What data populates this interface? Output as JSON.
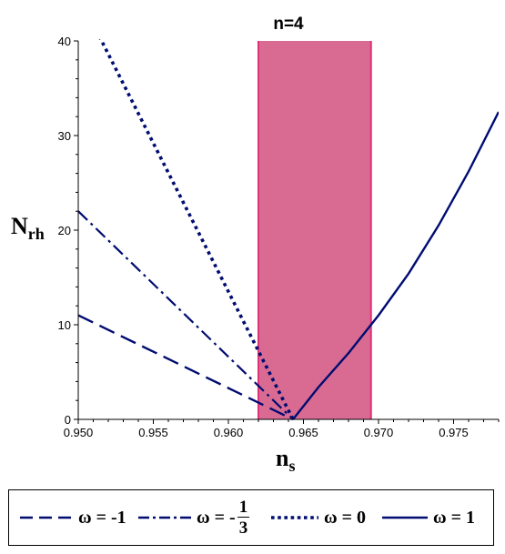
{
  "chart_data": {
    "type": "line",
    "title": "n=4",
    "xlabel": "n",
    "xlabel_sub": "s",
    "ylabel": "N",
    "ylabel_sub": "rh",
    "xlim": [
      0.95,
      0.978
    ],
    "ylim": [
      0,
      40
    ],
    "xticks": [
      "0.950",
      "0.955",
      "0.960",
      "0.965",
      "0.970",
      "0.975"
    ],
    "yticks": [
      "0",
      "10",
      "20",
      "30",
      "40"
    ],
    "band": {
      "from": 0.962,
      "to": 0.9695,
      "color": "#d96b92",
      "edge": "#e0307a"
    },
    "line_color": "#000c70",
    "series": [
      {
        "name": "ω = -1",
        "style": "dashed",
        "x": [
          0.95,
          0.9643
        ],
        "y": [
          11,
          0
        ]
      },
      {
        "name": "ω = -1/3",
        "style": "dashdot",
        "x": [
          0.95,
          0.9643
        ],
        "y": [
          22,
          0
        ]
      },
      {
        "name": "ω = 0",
        "style": "dotted",
        "x": [
          0.9514,
          0.9643
        ],
        "y": [
          40.5,
          0
        ]
      },
      {
        "name": "ω = 1",
        "style": "solid",
        "x": [
          0.9643,
          0.966,
          0.968,
          0.97,
          0.972,
          0.974,
          0.976,
          0.978
        ],
        "y": [
          0,
          3.4,
          7.0,
          11.0,
          15.4,
          20.5,
          26.2,
          32.5
        ]
      }
    ]
  },
  "legend": {
    "items": [
      {
        "prefix": "ω = -1",
        "num": "",
        "den": ""
      },
      {
        "prefix": "ω = -",
        "num": "1",
        "den": "3"
      },
      {
        "prefix": "ω = 0",
        "num": "",
        "den": ""
      },
      {
        "prefix": "ω = 1",
        "num": "",
        "den": ""
      }
    ]
  }
}
